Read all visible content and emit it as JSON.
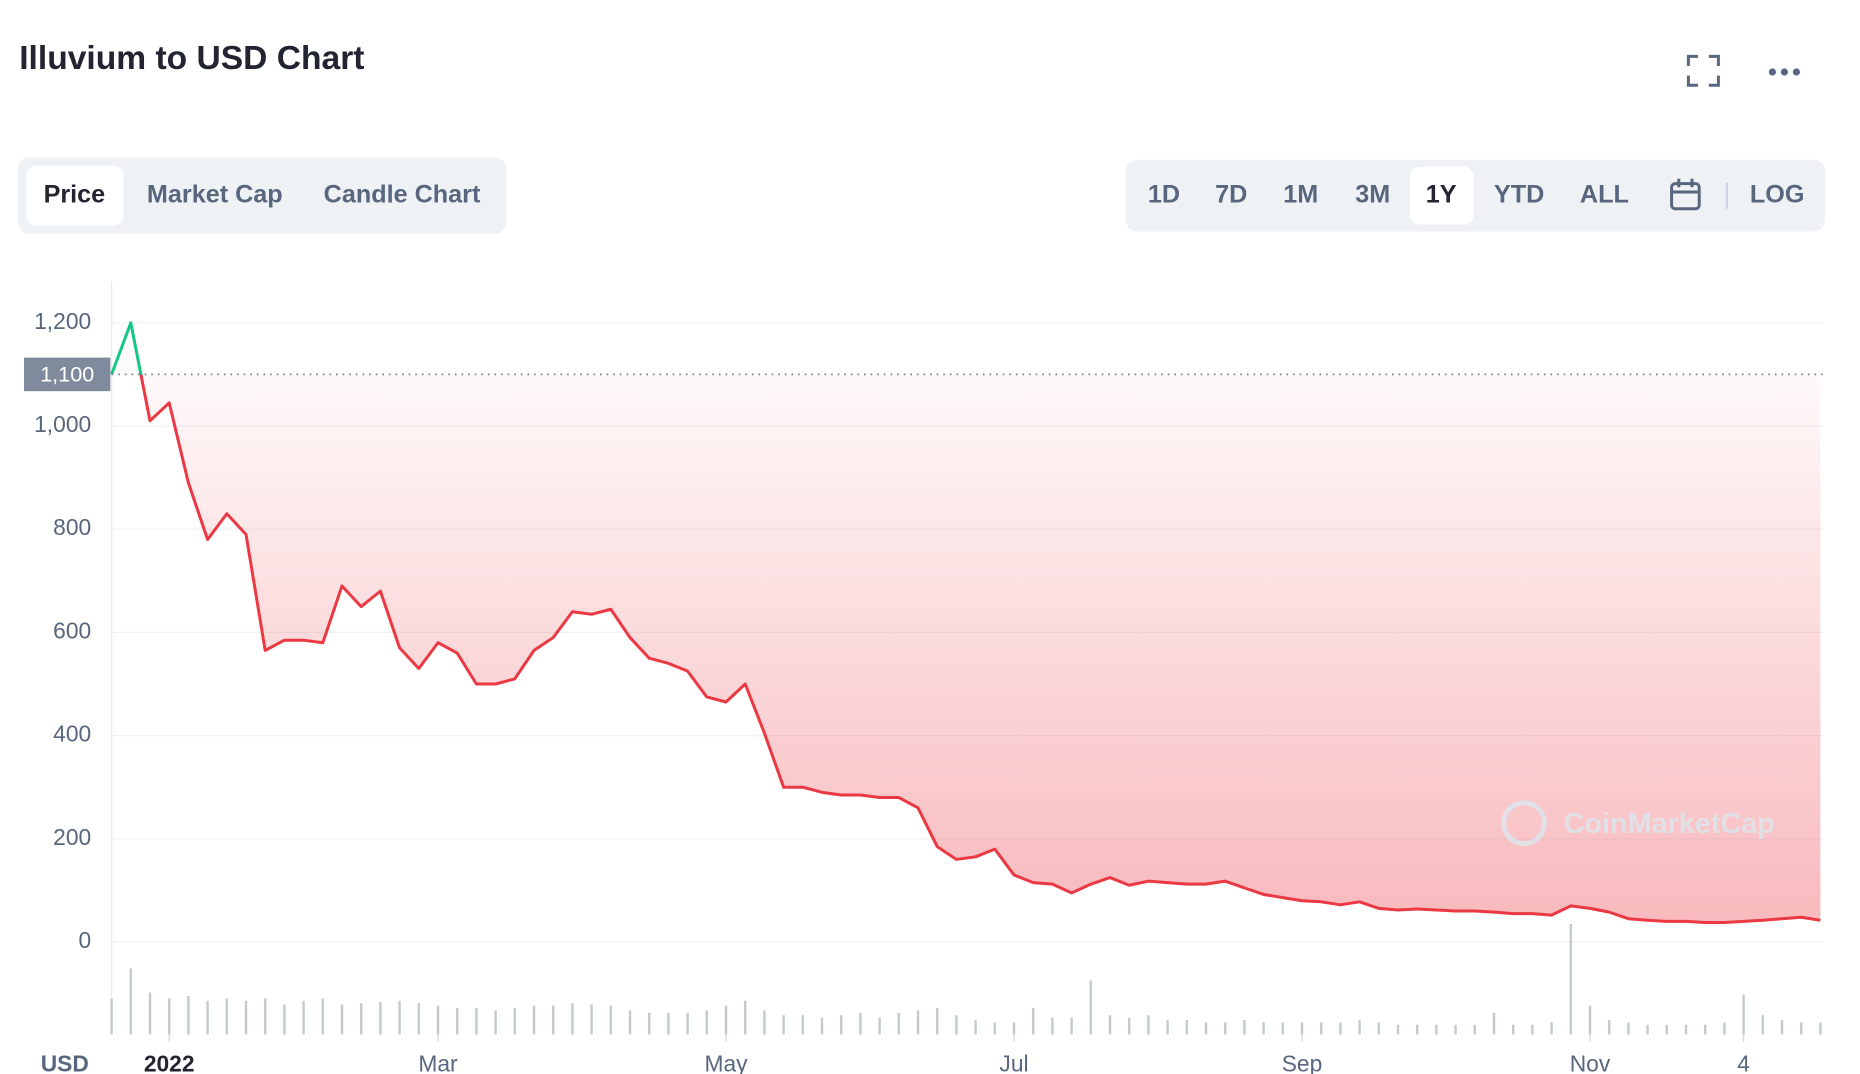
{
  "header": {
    "title": "Illuvium to USD Chart"
  },
  "tabs": [
    "Price",
    "Market Cap",
    "Candle Chart"
  ],
  "ranges": [
    "1D",
    "7D",
    "1M",
    "3M",
    "1Y",
    "YTD",
    "ALL"
  ],
  "log_label": "LOG",
  "currency_label": "USD",
  "watermark": "CoinMarketCap",
  "chart_data": {
    "type": "line",
    "categories": [
      null,
      null,
      null,
      "2022",
      null,
      null,
      null,
      null,
      null,
      null,
      null,
      null,
      null,
      null,
      null,
      null,
      null,
      "Mar",
      null,
      null,
      null,
      null,
      null,
      null,
      null,
      null,
      null,
      null,
      null,
      null,
      null,
      null,
      "May",
      null,
      null,
      null,
      null,
      null,
      null,
      null,
      null,
      null,
      null,
      null,
      null,
      null,
      null,
      "Jul",
      null,
      null,
      null,
      null,
      null,
      null,
      null,
      null,
      null,
      null,
      null,
      null,
      null,
      null,
      "Sep",
      null,
      null,
      null,
      null,
      null,
      null,
      null,
      null,
      null,
      null,
      null,
      null,
      null,
      null,
      "Nov",
      null,
      null,
      null,
      null,
      null,
      null,
      null,
      "4",
      null,
      null,
      null,
      null
    ],
    "series": [
      {
        "name": "Price",
        "values": [
          1100,
          1200,
          1010,
          1045,
          890,
          780,
          830,
          790,
          565,
          585,
          585,
          580,
          690,
          650,
          680,
          570,
          530,
          580,
          560,
          500,
          500,
          510,
          565,
          590,
          640,
          635,
          645,
          590,
          550,
          540,
          525,
          475,
          465,
          500,
          405,
          300,
          300,
          290,
          285,
          285,
          280,
          280,
          260,
          185,
          160,
          165,
          180,
          130,
          115,
          112,
          95,
          112,
          125,
          110,
          118,
          115,
          112,
          112,
          118,
          105,
          92,
          86,
          80,
          78,
          72,
          78,
          65,
          62,
          64,
          62,
          60,
          60,
          58,
          55,
          55,
          52,
          70,
          65,
          58,
          45,
          42,
          40,
          40,
          38,
          38,
          40,
          42,
          45,
          48,
          42
        ],
        "up_color": "#16c784",
        "down_color": "#ea3943"
      }
    ],
    "volume": [
      30,
      55,
      35,
      30,
      32,
      28,
      30,
      28,
      30,
      25,
      28,
      30,
      25,
      26,
      27,
      28,
      26,
      24,
      22,
      22,
      20,
      22,
      24,
      24,
      26,
      25,
      24,
      20,
      18,
      18,
      18,
      20,
      24,
      28,
      20,
      16,
      16,
      14,
      16,
      18,
      14,
      18,
      20,
      22,
      16,
      12,
      10,
      10,
      22,
      14,
      14,
      45,
      16,
      14,
      16,
      12,
      12,
      10,
      10,
      12,
      10,
      10,
      10,
      10,
      10,
      12,
      10,
      8,
      8,
      8,
      8,
      8,
      18,
      8,
      8,
      10,
      92,
      24,
      12,
      10,
      8,
      8,
      8,
      8,
      10,
      33,
      16,
      12,
      10,
      10
    ],
    "reference_line": {
      "value": 1100,
      "label": "1,100"
    },
    "ylim": [
      0,
      1280
    ],
    "yticks": [
      0,
      200,
      400,
      600,
      800,
      {
        "value": 1000,
        "label": "1,000"
      },
      {
        "value": 1200,
        "label": "1,200"
      }
    ],
    "grid": true
  }
}
